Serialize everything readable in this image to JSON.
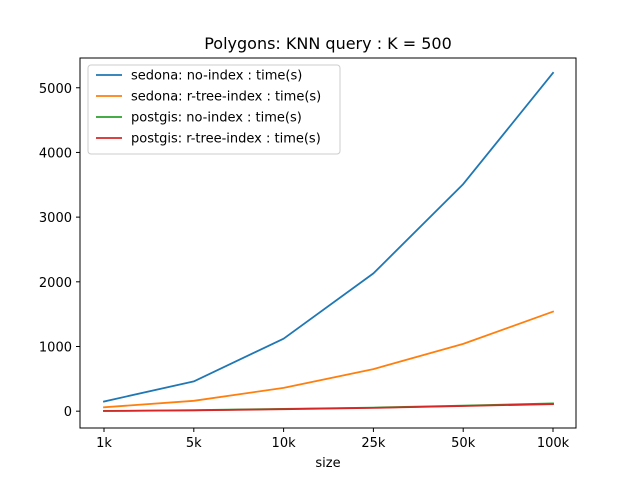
{
  "chart_data": {
    "type": "line",
    "title": "Polygons: KNN query : K = 500",
    "xlabel": "size",
    "ylabel": "",
    "categories": [
      "1k",
      "5k",
      "10k",
      "25k",
      "50k",
      "100k"
    ],
    "yticks": [
      0,
      1000,
      2000,
      3000,
      4000,
      5000
    ],
    "ylim": [
      -260,
      5460
    ],
    "legend_position": "upper-left",
    "grid": false,
    "series": [
      {
        "name": "sedona: no-index : time(s)",
        "color": "#1f77b4",
        "values": [
          150,
          460,
          1120,
          2130,
          3510,
          5230
        ]
      },
      {
        "name": "sedona: r-tree-index : time(s)",
        "color": "#ff7f0e",
        "values": [
          60,
          160,
          360,
          650,
          1040,
          1540
        ]
      },
      {
        "name": "postgis: no-index : time(s)",
        "color": "#2ca02c",
        "values": [
          5,
          15,
          35,
          55,
          85,
          120
        ]
      },
      {
        "name": "postgis: r-tree-index : time(s)",
        "color": "#d62728",
        "values": [
          3,
          12,
          30,
          50,
          80,
          110
        ]
      }
    ]
  }
}
